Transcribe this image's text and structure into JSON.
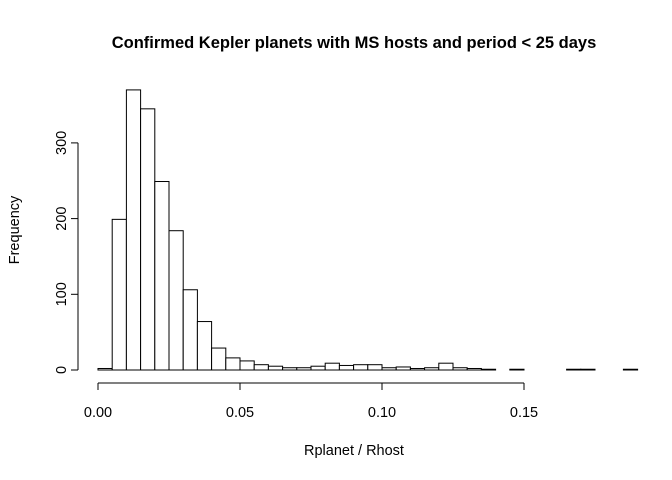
{
  "chart_data": {
    "type": "bar",
    "title": "Confirmed Kepler planets with MS hosts and period < 25 days",
    "xlabel": "Rplanet / Rhost",
    "ylabel": "Frequency",
    "bin_width": 0.005,
    "bin_start": 0.0,
    "values": [
      2,
      199,
      370,
      345,
      249,
      184,
      106,
      64,
      29,
      16,
      12,
      7,
      5,
      3,
      3,
      5,
      9,
      6,
      7,
      7,
      3,
      4,
      2,
      3,
      9,
      3,
      2,
      1,
      0,
      1,
      0,
      0,
      0,
      1,
      1,
      0,
      0,
      1
    ],
    "xlim": [
      0.0,
      0.18
    ],
    "ylim": [
      0,
      370
    ],
    "x_ticks": [
      "0.00",
      "0.05",
      "0.10",
      "0.15"
    ],
    "y_ticks": [
      "0",
      "100",
      "200",
      "300"
    ],
    "grid": false,
    "legend": "none"
  }
}
